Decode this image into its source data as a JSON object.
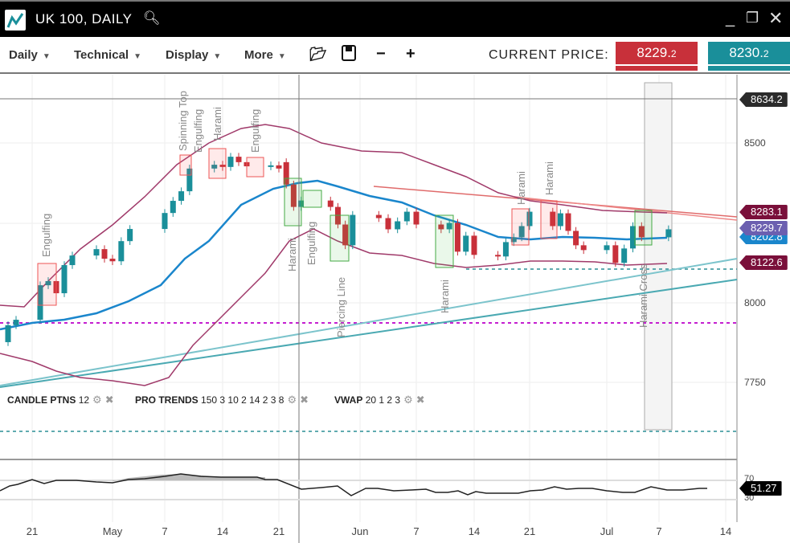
{
  "window": {
    "title": "UK 100, DAILY",
    "icons": [
      "chart-logo-icon",
      "search-icon",
      "minimize-icon",
      "popout-icon",
      "close-icon"
    ]
  },
  "toolbar": {
    "menus": [
      "Daily",
      "Technical",
      "Display",
      "More"
    ],
    "current_price_label": "CURRENT PRICE:",
    "sell_price": {
      "main": "8229.",
      "small": "2"
    },
    "buy_price": {
      "main": "8230.",
      "small": "2"
    },
    "colors": {
      "sell": "#c8303a",
      "buy": "#1a8f9a"
    }
  },
  "indicators": [
    {
      "name": "CANDLE PTNS",
      "params": "12"
    },
    {
      "name": "PRO TRENDS",
      "params": "150 3 10 2 14 2 3 8"
    },
    {
      "name": "VWAP",
      "params": "20 1 2 3"
    }
  ],
  "price_axis": {
    "ticks": [
      "8500",
      "8000",
      "7750"
    ],
    "tags": [
      {
        "value": "8634.2",
        "color": "#2b2b2b"
      },
      {
        "value": "8283.1",
        "color": "#7a0f3a"
      },
      {
        "value": "8229.7",
        "color": "#6b5fb0"
      },
      {
        "value": "8202.8",
        "color": "#1a86cc"
      },
      {
        "value": "8122.6",
        "color": "#7a0f3a"
      }
    ]
  },
  "rsi": {
    "levels": [
      "70",
      "30"
    ],
    "value": "51.27"
  },
  "date_axis": [
    "21",
    "May",
    "7",
    "14",
    "21",
    "Jun",
    "7",
    "14",
    "21",
    "Jul",
    "7",
    "14"
  ],
  "patterns": [
    "Engulfing",
    "Spinning Top",
    "Engulfing",
    "Harami",
    "Engulfing",
    "Harami",
    "Engulfing",
    "Piercing Line",
    "Harami",
    "Harami",
    "Harami",
    "Harami Cross"
  ],
  "chart_data": {
    "type": "candlestick",
    "symbol": "UK 100",
    "interval": "Daily",
    "candles": [
      [
        "2024-04-18",
        7877,
        7930
      ],
      [
        "2024-04-19",
        7930,
        7947
      ],
      [
        "2024-04-22",
        7947,
        8055
      ],
      [
        "2024-04-23",
        8055,
        8068
      ],
      [
        "2024-04-24",
        8068,
        8030
      ],
      [
        "2024-04-25",
        8030,
        8118
      ],
      [
        "2024-04-26",
        8118,
        8148
      ],
      [
        "2024-04-29",
        8148,
        8168
      ],
      [
        "2024-04-30",
        8168,
        8138
      ],
      [
        "2024-05-01",
        8138,
        8130
      ],
      [
        "2024-05-02",
        8130,
        8193
      ],
      [
        "2024-05-03",
        8193,
        8231
      ],
      [
        "2024-05-07",
        8231,
        8281
      ],
      [
        "2024-05-08",
        8281,
        8319
      ],
      [
        "2024-05-09",
        8319,
        8349
      ],
      [
        "2024-05-10",
        8349,
        8420
      ],
      [
        "2024-05-13",
        8420,
        8432
      ],
      [
        "2024-05-14",
        8432,
        8425
      ],
      [
        "2024-05-15",
        8425,
        8457
      ],
      [
        "2024-05-16",
        8457,
        8440
      ],
      [
        "2024-05-17",
        8440,
        8427
      ],
      [
        "2024-05-20",
        8427,
        8430
      ],
      [
        "2024-05-21",
        8430,
        8420
      ],
      [
        "2024-05-22",
        8440,
        8370
      ],
      [
        "2024-05-23",
        8370,
        8300
      ],
      [
        "2024-05-24",
        8300,
        8320
      ],
      [
        "2024-05-28",
        8320,
        8300
      ],
      [
        "2024-05-29",
        8300,
        8245
      ],
      [
        "2024-05-30",
        8245,
        8180
      ],
      [
        "2024-05-31",
        8180,
        8275
      ],
      [
        "2024-06-03",
        8275,
        8265
      ],
      [
        "2024-06-04",
        8265,
        8230
      ],
      [
        "2024-06-05",
        8230,
        8255
      ],
      [
        "2024-06-06",
        8255,
        8285
      ],
      [
        "2024-06-07",
        8285,
        8245
      ],
      [
        "2024-06-10",
        8245,
        8230
      ],
      [
        "2024-06-11",
        8230,
        8250
      ],
      [
        "2024-06-12",
        8250,
        8160
      ],
      [
        "2024-06-13",
        8160,
        8210
      ],
      [
        "2024-06-14",
        8210,
        8150
      ],
      [
        "2024-06-17",
        8150,
        8145
      ],
      [
        "2024-06-18",
        8145,
        8190
      ],
      [
        "2024-06-19",
        8190,
        8205
      ],
      [
        "2024-06-20",
        8205,
        8240
      ],
      [
        "2024-06-21",
        8240,
        8285
      ],
      [
        "2024-06-24",
        8285,
        8240
      ],
      [
        "2024-06-25",
        8240,
        8280
      ],
      [
        "2024-06-26",
        8280,
        8225
      ],
      [
        "2024-06-27",
        8225,
        8180
      ],
      [
        "2024-06-28",
        8180,
        8165
      ],
      [
        "2024-07-01",
        8165,
        8180
      ],
      [
        "2024-07-02",
        8180,
        8125
      ],
      [
        "2024-07-03",
        8125,
        8170
      ],
      [
        "2024-07-04",
        8170,
        8240
      ],
      [
        "2024-07-05",
        8240,
        8205
      ],
      [
        "2024-07-08",
        8205,
        8230
      ]
    ]
  }
}
